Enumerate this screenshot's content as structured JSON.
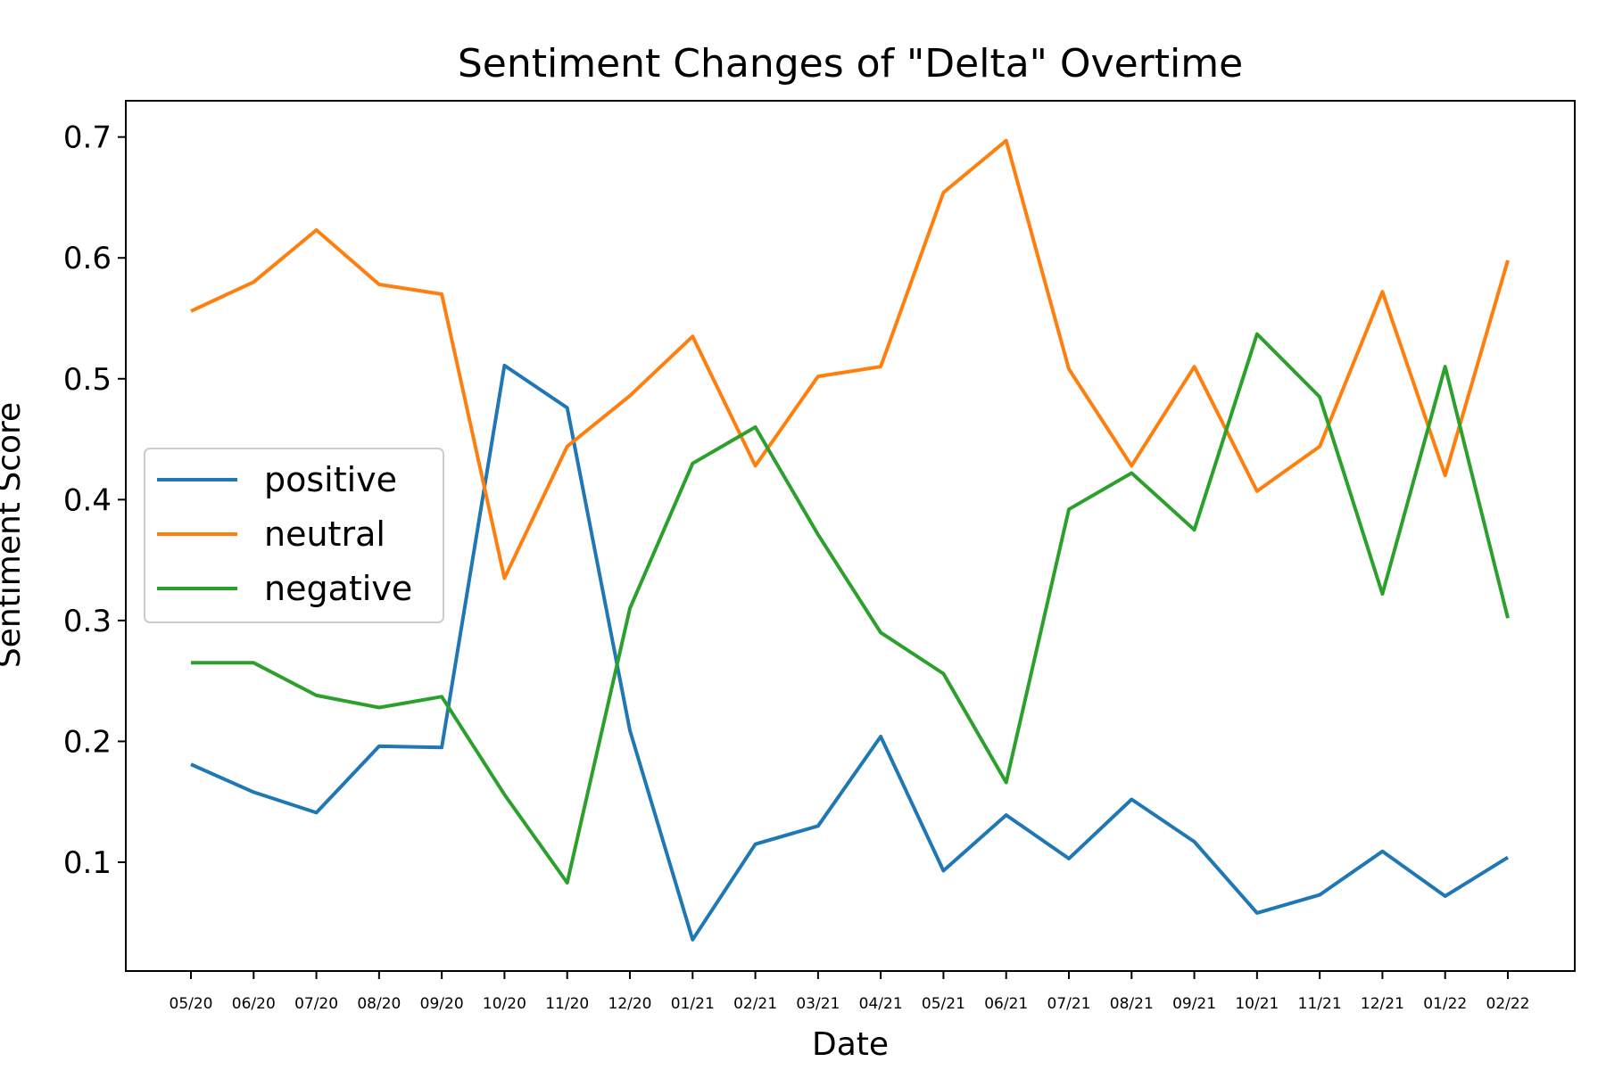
{
  "chart_data": {
    "type": "line",
    "title": "Sentiment Changes of \"Delta\" Overtime",
    "xlabel": "Date",
    "ylabel": "Sentiment Score",
    "categories": [
      "05/20",
      "06/20",
      "07/20",
      "08/20",
      "09/20",
      "10/20",
      "11/20",
      "12/20",
      "01/21",
      "02/21",
      "03/21",
      "04/21",
      "05/21",
      "06/21",
      "07/21",
      "08/21",
      "09/21",
      "10/21",
      "11/21",
      "12/21",
      "01/22",
      "02/22"
    ],
    "yticks": [
      "0.1",
      "0.2",
      "0.3",
      "0.4",
      "0.5",
      "0.6",
      "0.7"
    ],
    "ylim": [
      0.01,
      0.73
    ],
    "grid": false,
    "legend_position": "center-left",
    "series": [
      {
        "name": "positive",
        "color": "#1f77b4",
        "values": [
          0.181,
          0.158,
          0.141,
          0.196,
          0.195,
          0.511,
          0.476,
          0.209,
          0.036,
          0.115,
          0.13,
          0.204,
          0.093,
          0.139,
          0.103,
          0.152,
          0.117,
          0.058,
          0.073,
          0.109,
          0.072,
          0.104
        ]
      },
      {
        "name": "neutral",
        "color": "#ff7f0e",
        "values": [
          0.556,
          0.58,
          0.623,
          0.578,
          0.57,
          0.335,
          0.444,
          0.486,
          0.535,
          0.428,
          0.502,
          0.51,
          0.654,
          0.697,
          0.508,
          0.428,
          0.51,
          0.407,
          0.444,
          0.572,
          0.42,
          0.598
        ]
      },
      {
        "name": "negative",
        "color": "#2ca02c",
        "values": [
          0.265,
          0.265,
          0.238,
          0.228,
          0.237,
          0.156,
          0.083,
          0.31,
          0.43,
          0.46,
          0.371,
          0.29,
          0.256,
          0.166,
          0.392,
          0.422,
          0.375,
          0.537,
          0.485,
          0.322,
          0.51,
          0.302
        ]
      }
    ]
  }
}
